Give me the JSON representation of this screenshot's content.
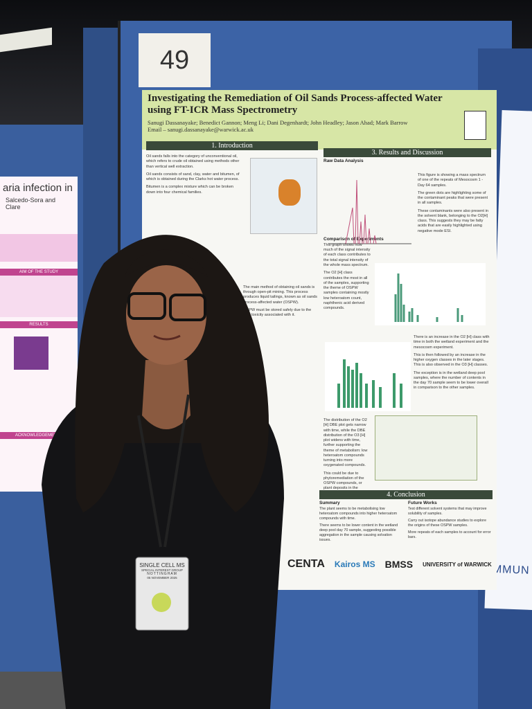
{
  "board_number": "49",
  "poster": {
    "title": "Investigating the Remediation of Oil Sands Process-affected Water using FT-ICR Mass Spectrometry",
    "authors": "Sanugi Dassanayake; Benedict Gannon; Meng Li; Dani Degenhardt; John Headley; Jason Ahad; Mark Barrow",
    "email": "Email – sanugi.dassanayake@warwick.ac.uk",
    "introduction": {
      "heading": "1. Introduction",
      "paragraphs": [
        "Oil sands falls into the category of unconventional oil, which refers to crude oil obtained using methods other than vertical well extraction.",
        "Oil sands consists of sand, clay, water and bitumen, of which is obtained during the Clarks hot water process.",
        "Bitumen is a complex mixture which can be broken down into four chemical families.",
        "The main method of obtaining oil sands is through open-pit mining. This process produces liquid tailings, known as oil sands process-affected water (OSPW).",
        "OSPW must be stored safely due to the high toxicity associated with it."
      ]
    },
    "results": {
      "heading": "3. Results and Discussion",
      "raw_heading": "Raw Data Analysis",
      "raw_paragraphs": [
        "This figure is showing a mass spectrum of one of the repeats of Mesocosm 1 - Day 64 samples.",
        "The green dots are highlighting some of the contaminant peaks that were present in all samples.",
        "These contaminants were also present in the solvent blank, belonging to the O2[H] class. This suggests they may be fatty acids that are easily highlighted using negative mode ESI."
      ],
      "comparison_heading": "Comparison of Experiments",
      "comparison_paragraphs": [
        "This graph shows how much of the signal intensity of each class contributes to the total signal intensity of the whole mass spectrum.",
        "The O2 [H] class contributes the most in all of the samples, supporting the theme of OSPW samples containing mostly low heteroatom count, naphthenic acid derived compounds."
      ],
      "trend_paragraphs": [
        "There is an increase in the O2 [H] class with time in both the wetland experiment and the mesocosm experiment.",
        "This is then followed by an increase in the higher oxygen classes in the later stages. This is also observed in the O3 [H] classes.",
        "The exception is in the wetland deep pool samples, where the number of contents in the day 70 sample seem to be lower overall in comparison to the other samples."
      ],
      "dbe_paragraphs": [
        "The distribution of the O2 [H] DBE plot gets narrow with time, while the DBE distribution of the O3 [H] plot widens with time, further supporting the theme of metabolism: low heteroatom compounds turning into more oxygenated compounds.",
        "This could be due to phytoremediation of the OSPW compounds, or plant deposits in the OSPW with time."
      ]
    },
    "conclusion": {
      "heading": "4. Conclusion",
      "summary_heading": "Summary",
      "summary": [
        "The plant seems to be metabolising low heteroatom compounds into higher heteroatom compounds with time.",
        "There seems to be lower content in the wetland deep pool day 70 sample, suggesting possible aggregation in the sample causing solvation issues."
      ],
      "future_heading": "Future Works",
      "future": [
        "Test different solvent systems that may improve solubility of samples.",
        "Carry out isotope abundance studies to explore the origins of these OSPW samples.",
        "More repeats of each samples to account for error bars."
      ]
    },
    "logos": [
      "CENTA",
      "Kairos MS",
      "BMSS",
      "UNIVERSITY of WARWICK"
    ]
  },
  "badge": {
    "line1": "SINGLE CELL MS",
    "line2": "SPECIAL INTEREST GROUP",
    "line3": "NOTTINGHAM",
    "line4": "05 NOVEMBER 2025"
  },
  "left_poster": {
    "title": "aria infection in",
    "authors": "Salcedo-Sora and Clare",
    "aim": "AIM OF THE STUDY",
    "results": "RESULTS",
    "acknowledgements": "ACKNOWLEDGEMENTS"
  },
  "right_poster": {
    "text": "IMMUN"
  }
}
